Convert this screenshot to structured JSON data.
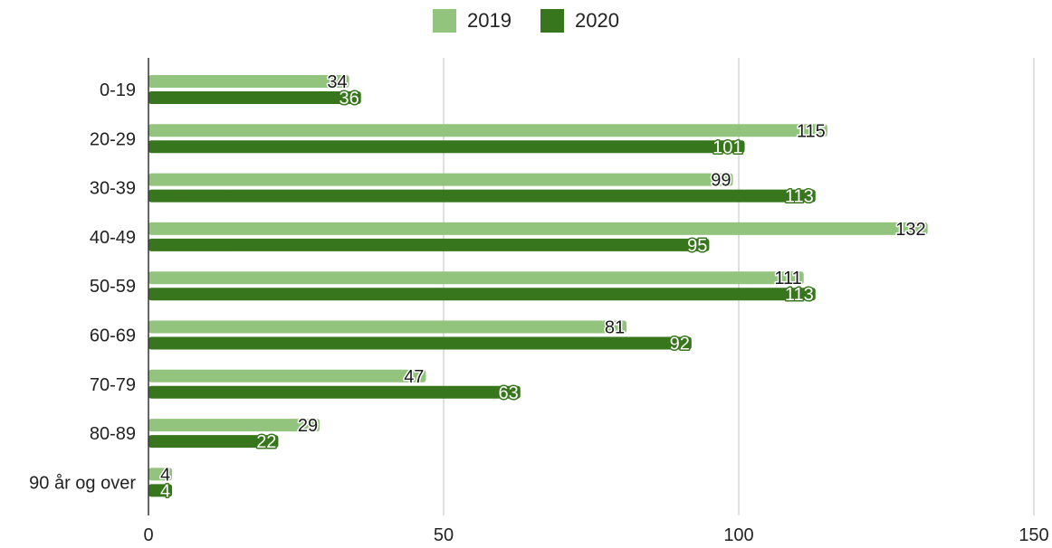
{
  "chart_data": {
    "type": "bar",
    "orientation": "horizontal",
    "categories": [
      "0-19",
      "20-29",
      "30-39",
      "40-49",
      "50-59",
      "60-69",
      "70-79",
      "80-89",
      "90 år og over"
    ],
    "series": [
      {
        "name": "2019",
        "color": "#93c47d",
        "values": [
          34,
          115,
          99,
          132,
          111,
          81,
          47,
          29,
          4
        ]
      },
      {
        "name": "2020",
        "color": "#38761d",
        "values": [
          36,
          101,
          113,
          95,
          113,
          92,
          63,
          22,
          4
        ]
      }
    ],
    "xlim": [
      0,
      150
    ],
    "xticks": [
      0,
      50,
      100,
      150
    ],
    "grid": true,
    "legend": "top-center",
    "data_labels": true
  }
}
